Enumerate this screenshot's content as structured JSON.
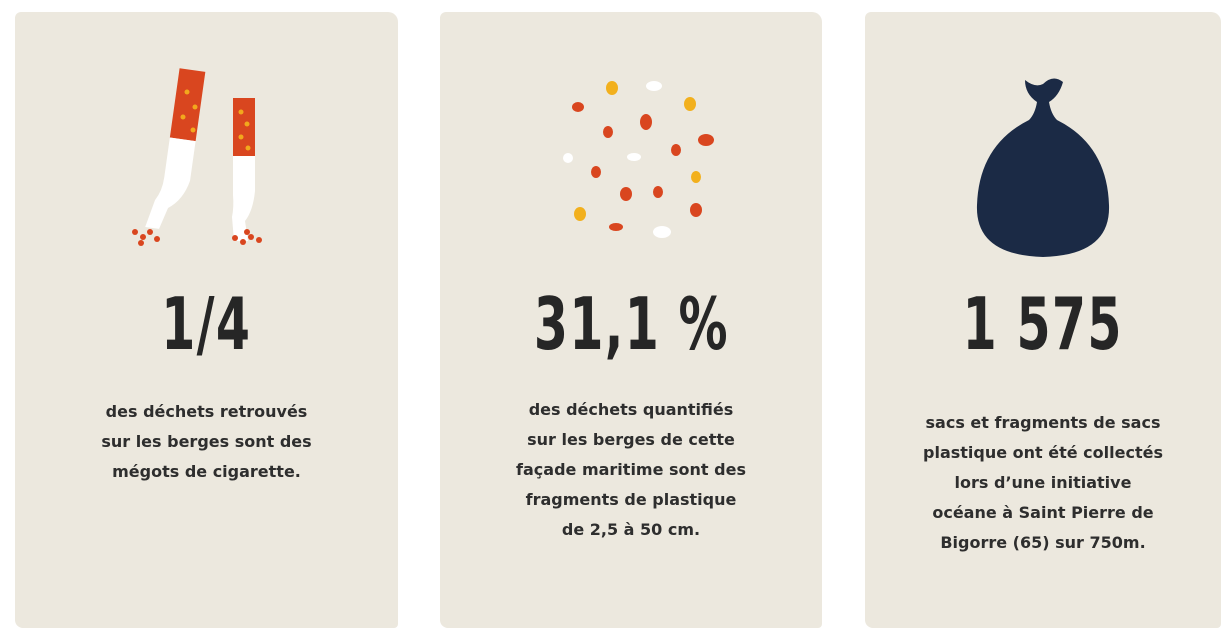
{
  "cards": [
    {
      "stat": "1/4",
      "lines": [
        "des déchets retrouvés",
        "sur les berges sont des",
        "mégots de cigarette."
      ]
    },
    {
      "stat": "31,1 %",
      "lines": [
        "des déchets quantifiés",
        "sur les berges de cette",
        "façade maritime sont des",
        "fragments de plastique",
        "de 2,5 à 50 cm."
      ]
    },
    {
      "stat": "1 575",
      "lines": [
        "sacs et fragments de sacs",
        "plastique ont été collectés",
        "lors d’une initiative",
        "océane à Saint Pierre de",
        "Bigorre (65) sur 750m."
      ]
    }
  ]
}
